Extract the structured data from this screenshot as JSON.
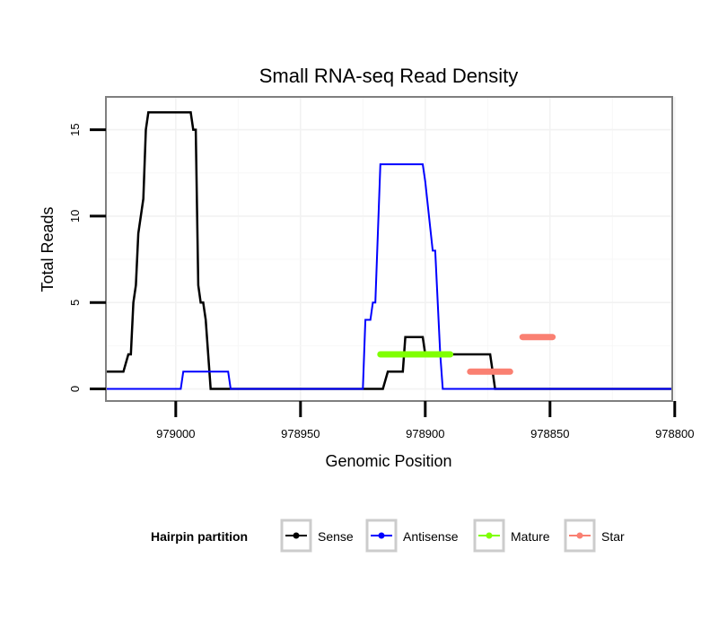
{
  "chart_data": {
    "type": "line",
    "title": "Small RNA-seq Read Density",
    "xlabel": "Genomic Position",
    "ylabel": "Total Reads",
    "x_reversed": true,
    "xlim": [
      979028,
      978801
    ],
    "ylim": [
      -0.7,
      16.9
    ],
    "x_ticks": [
      979000,
      978950,
      978900,
      978850,
      978800
    ],
    "y_ticks": [
      0,
      5,
      10,
      15
    ],
    "x_tick_labels": [
      "979000",
      "978950",
      "978900",
      "978850",
      "978800"
    ],
    "y_tick_labels": [
      "0",
      "5",
      "10",
      "15"
    ],
    "grid": true,
    "legend": {
      "title": "Hairpin partition",
      "position": "bottom",
      "entries": [
        "Sense",
        "Antisense",
        "Mature",
        "Star"
      ]
    },
    "series": [
      {
        "name": "Sense",
        "color": "#000000",
        "width": 2.5,
        "x": [
          979035,
          979021,
          979019,
          979018,
          979017,
          979016,
          979015,
          979013,
          979012,
          979011,
          979010,
          979006,
          978994,
          978993,
          978992,
          978991,
          978990,
          978989,
          978988,
          978986,
          978984,
          978926,
          978924,
          978918,
          978917,
          978915,
          978909,
          978908,
          978901,
          978900,
          978874,
          978873,
          978872,
          978871,
          978787
        ],
        "y": [
          1,
          1,
          2,
          2,
          5,
          6,
          9,
          11,
          15,
          16,
          16,
          16,
          16,
          15,
          15,
          6,
          5,
          5,
          4,
          0,
          0,
          0,
          0,
          0,
          0,
          1,
          1,
          3,
          3,
          2,
          2,
          1,
          0,
          0,
          0
        ]
      },
      {
        "name": "Antisense",
        "color": "#0000ff",
        "width": 2,
        "x": [
          979035,
          978998,
          978997,
          978979,
          978978,
          978927,
          978925,
          978924,
          978922,
          978921,
          978920,
          978919,
          978918,
          978901,
          978900,
          978897,
          978896,
          978894,
          978893,
          978870,
          978869,
          978787
        ],
        "y": [
          0,
          0,
          1,
          1,
          0,
          0,
          0,
          4,
          4,
          5,
          5,
          9,
          13,
          13,
          12,
          8,
          8,
          2,
          0,
          0,
          0,
          0
        ]
      },
      {
        "name": "Mature",
        "color": "#7fff00",
        "width": 7,
        "x": [
          978918,
          978890
        ],
        "y": [
          2,
          2
        ]
      },
      {
        "name": "Star",
        "color": "#fa8072",
        "width": 7,
        "x": [
          978882,
          978866
        ],
        "y": [
          1,
          1
        ]
      },
      {
        "name": "Star",
        "color": "#fa8072",
        "width": 7,
        "x": [
          978861,
          978849
        ],
        "y": [
          3,
          3
        ]
      }
    ]
  }
}
